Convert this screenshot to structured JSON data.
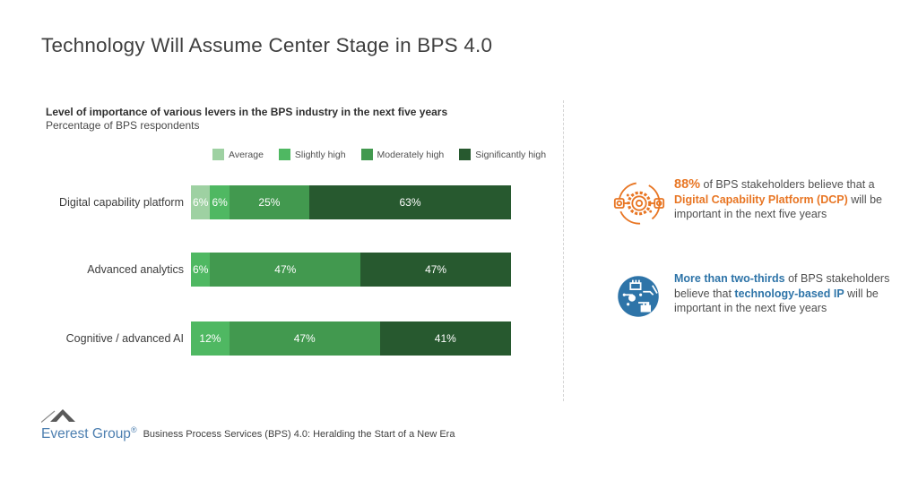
{
  "page": {
    "title": "Technology Will Assume Center Stage in BPS 4.0"
  },
  "chart": {
    "heading": "Level of importance of various levers in the BPS industry in the next five years",
    "subheading": "Percentage of BPS respondents",
    "legend": [
      {
        "label": "Average",
        "color": "#9ed1a2"
      },
      {
        "label": "Slightly high",
        "color": "#4fb862"
      },
      {
        "label": "Moderately high",
        "color": "#42994f"
      },
      {
        "label": "Significantly high",
        "color": "#27592f"
      }
    ]
  },
  "chart_data": {
    "type": "bar",
    "orientation": "horizontal",
    "stacked": true,
    "unit": "%",
    "xlim": [
      0,
      100
    ],
    "title": "Level of importance of various levers in the BPS industry in the next five years",
    "subtitle": "Percentage of BPS respondents",
    "legend_position": "top",
    "value_labels": "inside-white",
    "categories": [
      "Digital capability platform",
      "Advanced analytics",
      "Cognitive / advanced AI"
    ],
    "series": [
      {
        "name": "Average",
        "color": "#9ed1a2",
        "values": [
          6,
          0,
          0
        ]
      },
      {
        "name": "Slightly high",
        "color": "#4fb862",
        "values": [
          6,
          6,
          12
        ]
      },
      {
        "name": "Moderately high",
        "color": "#42994f",
        "values": [
          25,
          47,
          47
        ]
      },
      {
        "name": "Significantly high",
        "color": "#27592f",
        "values": [
          63,
          47,
          41
        ]
      }
    ]
  },
  "callouts": [
    {
      "icon": "gear-platform-icon",
      "highlight_color": "#e87624",
      "text_parts": [
        {
          "text": "88%",
          "highlight": true,
          "large": true
        },
        {
          "text": " of BPS stakeholders believe that a ",
          "highlight": false
        },
        {
          "text": "Digital Capability Platform (DCP)",
          "highlight": true
        },
        {
          "text": " will be important in the next five years",
          "highlight": false
        }
      ]
    },
    {
      "icon": "circuit-chip-icon",
      "highlight_color": "#2e74a8",
      "text_parts": [
        {
          "text": "More than two-thirds",
          "highlight": true
        },
        {
          "text": " of BPS stakeholders believe that ",
          "highlight": false
        },
        {
          "text": "technology-based IP",
          "highlight": true
        },
        {
          "text": " will be important in the next five years",
          "highlight": false
        }
      ]
    }
  ],
  "footer": {
    "logo_text": "Everest Group",
    "logo_registered": "®",
    "source_text": "Business Process Services (BPS) 4.0: Heralding the Start of a New Era"
  },
  "colors": {
    "accent_orange": "#e87624",
    "accent_blue": "#2e74a8",
    "title_gray": "#3f3f3f",
    "divider_gray": "#d4d4d4"
  }
}
